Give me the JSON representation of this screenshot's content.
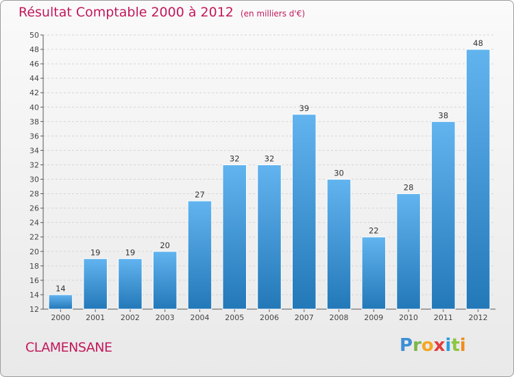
{
  "title": {
    "main": "Résultat Comptable 2000 à 2012",
    "unit": "(en milliers d'€)"
  },
  "commune": "CLAMENSANE",
  "logo": {
    "letters": [
      "P",
      "r",
      "o",
      "x",
      "i",
      "t",
      "i"
    ],
    "colors": [
      "#3d8fd6",
      "#7ab648",
      "#f5a623",
      "#e23c3c",
      "#2b9be0",
      "#8cc63f",
      "#f08c1c"
    ]
  },
  "colors": {
    "bar_light": "#62b4ef",
    "bar_dark": "#2378b8",
    "grid": "#d4d4d4",
    "title": "#c2185b"
  },
  "chart_data": {
    "type": "bar",
    "title": "Résultat Comptable 2000 à 2012",
    "subtitle": "(en milliers d'€)",
    "xlabel": "",
    "ylabel": "",
    "ylim": [
      12,
      50
    ],
    "ytick_step": 2,
    "grid": true,
    "categories": [
      "2000",
      "2001",
      "2002",
      "2003",
      "2004",
      "2005",
      "2006",
      "2007",
      "2008",
      "2009",
      "2010",
      "2011",
      "2012"
    ],
    "values": [
      14,
      19,
      19,
      20,
      27,
      32,
      32,
      39,
      30,
      22,
      28,
      38,
      48
    ]
  }
}
